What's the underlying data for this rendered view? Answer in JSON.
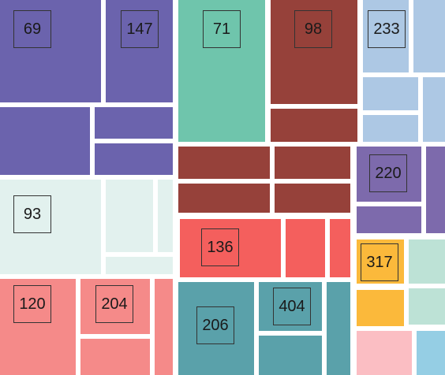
{
  "chart_data": {
    "type": "treemap",
    "title": "",
    "palette": {
      "purple": "#6b63ad",
      "lavender": "#7d6aac",
      "teal": "#6fc5ac",
      "brick": "#96413a",
      "lightblue": "#adc8e4",
      "mint": "#e2f1ee",
      "salmon": "#f58a89",
      "red": "#f45f5d",
      "steelteal": "#5aa1aa",
      "orange": "#fbb93b",
      "seafoam": "#bde2d6",
      "pink": "#fbbec3",
      "skyblue": "#95cee4"
    },
    "labeled_groups": [
      {
        "label": "69",
        "color": "#6b63ad"
      },
      {
        "label": "147",
        "color": "#6b63ad"
      },
      {
        "label": "71",
        "color": "#6fc5ac"
      },
      {
        "label": "98",
        "color": "#96413a"
      },
      {
        "label": "233",
        "color": "#adc8e4"
      },
      {
        "label": "93",
        "color": "#e2f1ee"
      },
      {
        "label": "220",
        "color": "#7d6aac"
      },
      {
        "label": "136",
        "color": "#f45f5d"
      },
      {
        "label": "317",
        "color": "#fbb93b"
      },
      {
        "label": "120",
        "color": "#f58a89"
      },
      {
        "label": "204",
        "color": "#f58a89"
      },
      {
        "label": "206",
        "color": "#5aa1aa"
      },
      {
        "label": "404",
        "color": "#5aa1aa"
      }
    ]
  }
}
